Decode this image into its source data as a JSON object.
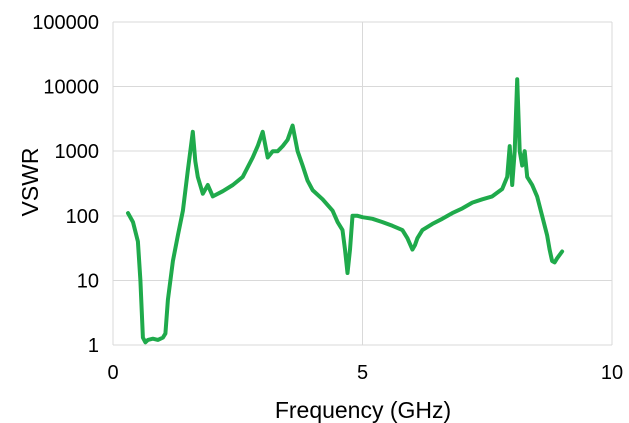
{
  "chart_data": {
    "type": "line",
    "xlabel": "Frequency (GHz)",
    "ylabel": "VSWR",
    "xlim": [
      0,
      10
    ],
    "ylim": [
      1,
      100000
    ],
    "yscale": "log",
    "grid": true,
    "legend": "none",
    "x_ticks": [
      "0",
      "5",
      "10"
    ],
    "y_ticks": [
      "1",
      "10",
      "100",
      "1000",
      "10000",
      "100000"
    ],
    "series": [
      {
        "color": "#1faa4b",
        "x": [
          0.3,
          0.4,
          0.5,
          0.55,
          0.6,
          0.65,
          0.7,
          0.8,
          0.9,
          1.0,
          1.05,
          1.1,
          1.2,
          1.3,
          1.4,
          1.5,
          1.55,
          1.6,
          1.65,
          1.7,
          1.8,
          1.9,
          2.0,
          2.2,
          2.4,
          2.6,
          2.8,
          2.9,
          3.0,
          3.1,
          3.2,
          3.3,
          3.4,
          3.5,
          3.6,
          3.7,
          3.8,
          3.9,
          4.0,
          4.2,
          4.4,
          4.5,
          4.6,
          4.65,
          4.7,
          4.75,
          4.8,
          4.9,
          5.0,
          5.2,
          5.4,
          5.6,
          5.8,
          5.9,
          6.0,
          6.05,
          6.1,
          6.2,
          6.4,
          6.6,
          6.8,
          7.0,
          7.2,
          7.4,
          7.6,
          7.8,
          7.9,
          7.95,
          8.0,
          8.05,
          8.1,
          8.15,
          8.2,
          8.25,
          8.3,
          8.4,
          8.5,
          8.6,
          8.7,
          8.75,
          8.8,
          8.85,
          8.9,
          9.0
        ],
        "y": [
          110,
          80,
          40,
          10,
          1.3,
          1.1,
          1.2,
          1.25,
          1.2,
          1.3,
          1.5,
          5,
          20,
          50,
          120,
          500,
          1000,
          2000,
          700,
          400,
          220,
          300,
          200,
          240,
          300,
          400,
          800,
          1200,
          2000,
          800,
          1000,
          1000,
          1200,
          1500,
          2500,
          1000,
          600,
          350,
          250,
          180,
          120,
          80,
          60,
          30,
          13,
          30,
          100,
          100,
          95,
          90,
          80,
          70,
          60,
          45,
          30,
          35,
          45,
          60,
          75,
          90,
          110,
          130,
          160,
          180,
          200,
          260,
          400,
          1200,
          300,
          1000,
          13000,
          1000,
          600,
          1000,
          400,
          300,
          200,
          100,
          50,
          30,
          20,
          19,
          22,
          28
        ]
      }
    ]
  }
}
